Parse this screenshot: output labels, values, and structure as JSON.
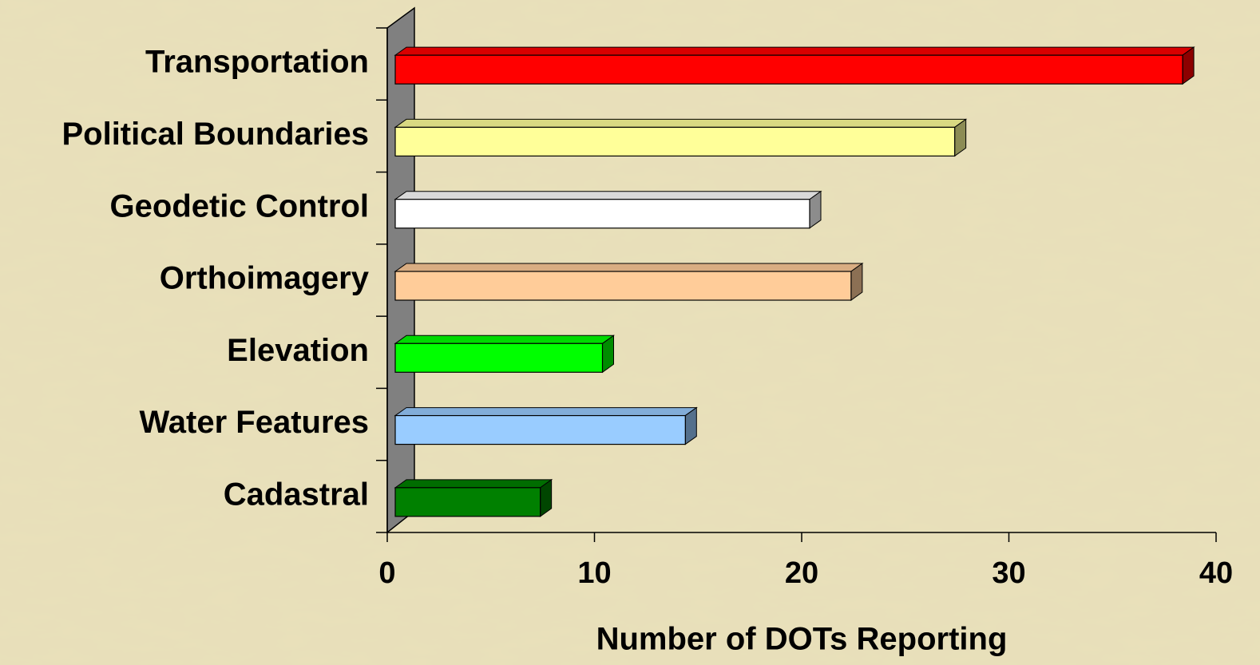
{
  "chart_data": {
    "type": "bar3d_horizontal",
    "xlabel": "Number of DOTs Reporting",
    "categories": [
      "Transportation",
      "Political Boundaries",
      "Geodetic Control",
      "Orthoimagery",
      "Elevation",
      "Water Features",
      "Cadastral"
    ],
    "values": [
      38,
      27,
      20,
      22,
      10,
      14,
      7
    ],
    "colors": [
      "#ff0000",
      "#ffff99",
      "#ffffff",
      "#ffcc99",
      "#00ff00",
      "#99ccff",
      "#008000"
    ],
    "xlim": [
      0,
      40
    ],
    "xticks": [
      0,
      10,
      20,
      30,
      40
    ]
  }
}
